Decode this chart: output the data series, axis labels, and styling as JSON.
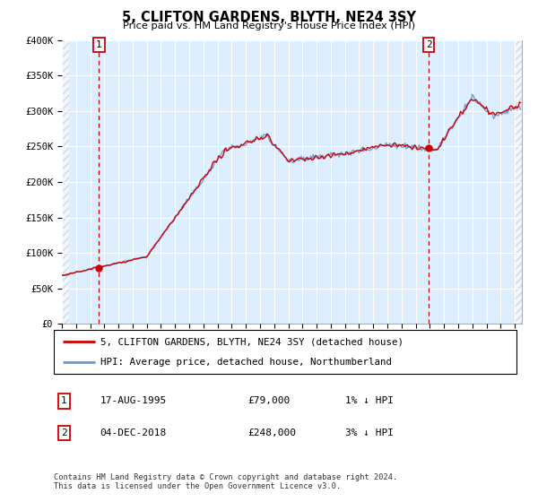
{
  "title": "5, CLIFTON GARDENS, BLYTH, NE24 3SY",
  "subtitle": "Price paid vs. HM Land Registry's House Price Index (HPI)",
  "legend_line1": "5, CLIFTON GARDENS, BLYTH, NE24 3SY (detached house)",
  "legend_line2": "HPI: Average price, detached house, Northumberland",
  "annotation1_date": "17-AUG-1995",
  "annotation1_price": "£79,000",
  "annotation1_hpi": "1% ↓ HPI",
  "annotation2_date": "04-DEC-2018",
  "annotation2_price": "£248,000",
  "annotation2_hpi": "3% ↓ HPI",
  "footnote": "Contains HM Land Registry data © Crown copyright and database right 2024.\nThis data is licensed under the Open Government Licence v3.0.",
  "sale1_year": 1995.625,
  "sale1_price": 79000,
  "sale2_year": 2018.917,
  "sale2_price": 248000,
  "price_line_color": "#cc0000",
  "hpi_line_color": "#6699cc",
  "sale_dot_color": "#cc0000",
  "vline_color": "#cc0000",
  "background_plot": "#ddeeff",
  "ylim": [
    0,
    400000
  ],
  "xlim_start": 1993.0,
  "xlim_end": 2025.5,
  "hatch_left_end": 1993.5,
  "hatch_right_start": 2025.0
}
